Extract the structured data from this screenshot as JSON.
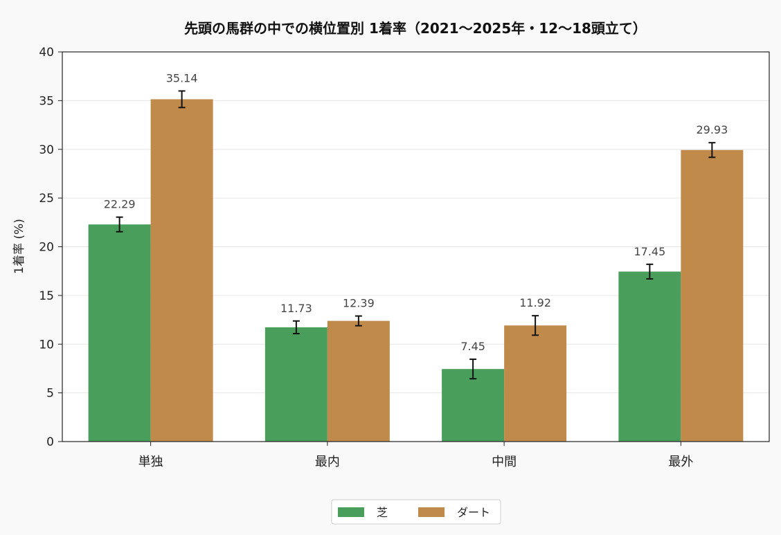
{
  "chart_data": {
    "type": "bar",
    "title": "先頭の馬群の中での横位置別 1着率（2021〜2025年・12〜18頭立て）",
    "xlabel": "",
    "ylabel": "1着率 (%)",
    "ylim": [
      0,
      40
    ],
    "yticks": [
      0,
      5,
      10,
      15,
      20,
      25,
      30,
      35,
      40
    ],
    "categories": [
      "単独",
      "最内",
      "中間",
      "最外"
    ],
    "series": [
      {
        "name": "芝",
        "color": "#4a9e5c",
        "values": [
          22.29,
          11.73,
          7.45,
          17.45
        ],
        "error": [
          0.75,
          0.65,
          1.0,
          0.75
        ],
        "labels": [
          "22.29",
          "11.73",
          "7.45",
          "17.45"
        ]
      },
      {
        "name": "ダート",
        "color": "#c08b4a",
        "values": [
          35.14,
          12.39,
          11.92,
          29.93
        ],
        "error": [
          0.85,
          0.5,
          1.0,
          0.75
        ],
        "labels": [
          "35.14",
          "12.39",
          "11.92",
          "29.93"
        ]
      }
    ],
    "grid": "y",
    "legend": "bottom-center"
  }
}
